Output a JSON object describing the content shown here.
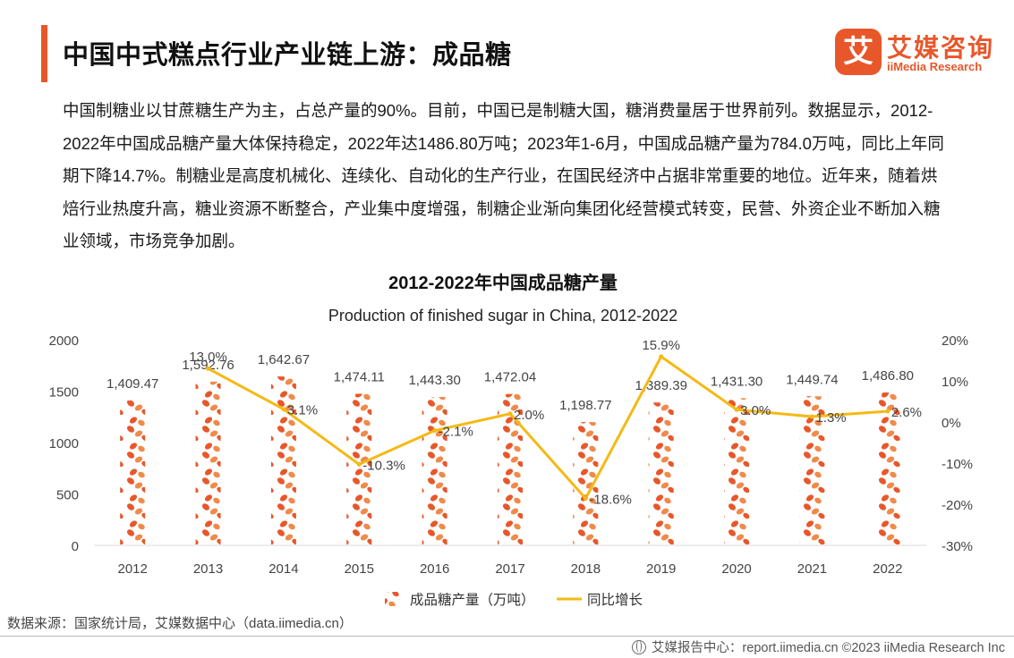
{
  "header": {
    "title": "中国中式糕点行业产业链上游：成品糖",
    "logo_mark": "艾",
    "logo_cn": "艾媒咨询",
    "logo_en": "iiMedia Research",
    "accent": "#e8572a"
  },
  "intro": {
    "text": "中国制糖业以甘蔗糖生产为主，占总产量的90%。目前，中国已是制糖大国，糖消费量居于世界前列。数据显示，2012-2022年中国成品糖产量大体保持稳定，2022年达1486.80万吨；2023年1-6月，中国成品糖产量为784.0万吨，同比上年同期下降14.7%。制糖业是高度机械化、连续化、自动化的生产行业，在国民经济中占据非常重要的地位。近年来，随着烘焙行业热度升高，糖业资源不断整合，产业集中度增强，制糖企业渐向集团化经营模式转变，民营、外资企业不断加入糖业领域，市场竞争加剧。"
  },
  "chart_data": {
    "type": "bar",
    "title": "2012-2022年中国成品糖产量",
    "subtitle": "Production of finished sugar in China, 2012-2022",
    "categories": [
      "2012",
      "2013",
      "2014",
      "2015",
      "2016",
      "2017",
      "2018",
      "2019",
      "2020",
      "2021",
      "2022"
    ],
    "series": [
      {
        "name": "成品糖产量（万吨）",
        "type": "bar",
        "axis": "left",
        "values": [
          1409.47,
          1592.76,
          1642.67,
          1474.11,
          1443.3,
          1472.04,
          1198.77,
          1389.39,
          1431.3,
          1449.74,
          1486.8
        ],
        "labels": [
          "1,409.47",
          "1,592.76",
          "1,642.67",
          "1,474.11",
          "1,443.30",
          "1,472.04",
          "1,198.77",
          "1,389.39",
          "1,431.30",
          "1,449.74",
          "1,486.80"
        ],
        "color": "#e8572a"
      },
      {
        "name": "同比增长",
        "type": "line",
        "axis": "right",
        "values": [
          null,
          13.0,
          3.1,
          -10.3,
          -2.1,
          2.0,
          -18.6,
          15.9,
          3.0,
          1.3,
          2.6
        ],
        "labels": [
          "",
          "13.0%",
          "3.1%",
          "-10.3%",
          "-2.1%",
          "2.0%",
          "-18.6%",
          "15.9%",
          "3.0%",
          "1.3%",
          "2.6%"
        ],
        "color": "#f5b915"
      }
    ],
    "ylim_left": [
      0,
      2000
    ],
    "yticks_left": [
      "0",
      "500",
      "1000",
      "1500",
      "2000"
    ],
    "ylim_right": [
      -30,
      20
    ],
    "yticks_right": [
      "-30%",
      "-20%",
      "-10%",
      "0%",
      "10%",
      "20%"
    ],
    "legend_position": "bottom",
    "grid": false
  },
  "source": "数据来源：国家统计局，艾媒数据中心（data.iimedia.cn）",
  "footer": {
    "text": "艾媒报告中心：report.iimedia.cn  ©2023  iiMedia Research  Inc"
  }
}
